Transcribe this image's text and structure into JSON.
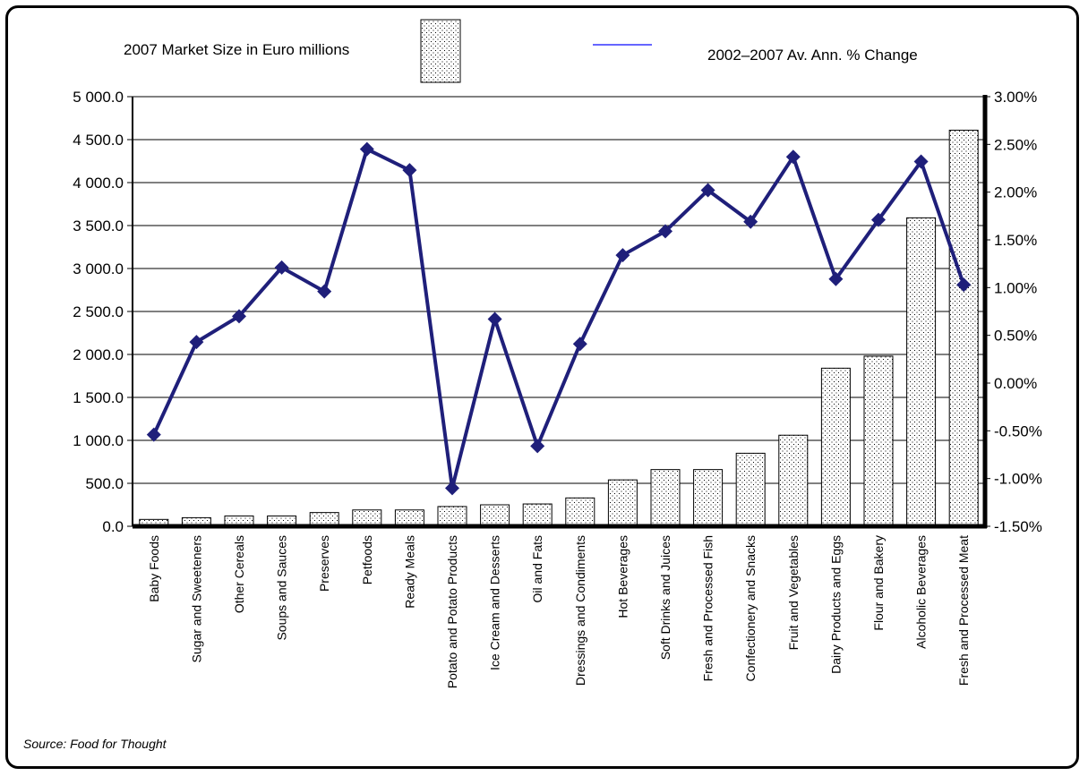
{
  "legend": {
    "bar_label": "2007 Market Size in Euro millions",
    "line_label": "2002–2007 Av. Ann. % Change"
  },
  "source": "Source: Food for Thought",
  "colors": {
    "line": "#1f1f7a",
    "bar_fill": "#ffffff",
    "bar_dots": "#000000",
    "axis": "#000000",
    "legend_line": "#3333ff"
  },
  "chart_data": {
    "type": "bar",
    "combo": "bar + line on secondary axis",
    "categories": [
      "Baby Foods",
      "Sugar and Sweeteners",
      "Other Cereals",
      "Soups and Sauces",
      "Preserves",
      "Petfoods",
      "Ready Meals",
      "Potato and Potato Products",
      "Ice Cream and Desserts",
      "Oil and Fats",
      "Dressings and Condiments",
      "Hot Beverages",
      "Soft Drinks and Juices",
      "Fresh and Processed Fish",
      "Confectionery and Snacks",
      "Fruit and Vegetables",
      "Dairy Products and Eggs",
      "Flour and Bakery",
      "Alcoholic Beverages",
      "Fresh and Processed Meat"
    ],
    "series": [
      {
        "name": "2007 Market Size in Euro millions",
        "type": "bar",
        "axis": "left",
        "values": [
          80,
          100,
          120,
          120,
          160,
          190,
          190,
          230,
          250,
          260,
          330,
          540,
          660,
          660,
          850,
          1060,
          1840,
          1980,
          3590,
          4610
        ]
      },
      {
        "name": "2002–2007 Av. Ann. % Change",
        "type": "line",
        "axis": "right",
        "values": [
          -0.54,
          0.43,
          0.7,
          1.21,
          0.96,
          2.45,
          2.23,
          -1.1,
          0.67,
          -0.66,
          0.41,
          1.34,
          1.59,
          2.02,
          1.69,
          2.37,
          1.09,
          1.71,
          2.32,
          1.03
        ]
      }
    ],
    "y_left": {
      "ylim": [
        0,
        5000
      ],
      "ticks": [
        0,
        500,
        1000,
        1500,
        2000,
        2500,
        3000,
        3500,
        4000,
        4500,
        5000
      ],
      "tick_labels": [
        "0.0",
        "500.0",
        "1 000.0",
        "1 500.0",
        "2 000.0",
        "2 500.0",
        "3 000.0",
        "3 500.0",
        "4 000.0",
        "4 500.0",
        "5 000.0"
      ]
    },
    "y_right": {
      "ylim": [
        -1.5,
        3.0
      ],
      "ticks": [
        -1.5,
        -1.0,
        -0.5,
        0.0,
        0.5,
        1.0,
        1.5,
        2.0,
        2.5,
        3.0
      ],
      "tick_labels": [
        "-1.50%",
        "-1.00%",
        "-0.50%",
        "0.00%",
        "0.50%",
        "1.00%",
        "1.50%",
        "2.00%",
        "2.50%",
        "3.00%"
      ]
    },
    "xlabel": "",
    "ylabel": "",
    "grid": "horizontal",
    "legend_position": "top"
  }
}
